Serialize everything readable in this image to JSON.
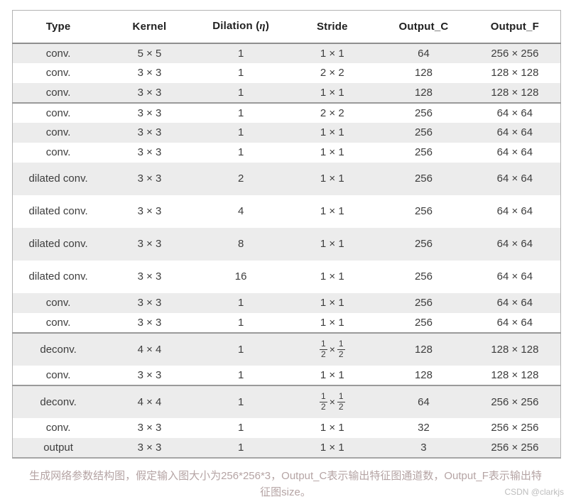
{
  "table": {
    "columns": [
      "Type",
      "Kernel",
      "Dilation (η)",
      "Stride",
      "Output_C",
      "Output_F"
    ],
    "rows": [
      {
        "type": "conv.",
        "kernel": "5 × 5",
        "dilation": "1",
        "stride": "1 × 1",
        "output_c": "64",
        "output_f": "256 × 256",
        "tall": false
      },
      {
        "type": "conv.",
        "kernel": "3 × 3",
        "dilation": "1",
        "stride": "2 × 2",
        "output_c": "128",
        "output_f": "128 × 128",
        "tall": false
      },
      {
        "type": "conv.",
        "kernel": "3 × 3",
        "dilation": "1",
        "stride": "1 × 1",
        "output_c": "128",
        "output_f": "128 × 128",
        "tall": false
      },
      {
        "type": "conv.",
        "kernel": "3 × 3",
        "dilation": "1",
        "stride": "2 × 2",
        "output_c": "256",
        "output_f": "64 × 64",
        "tall": false
      },
      {
        "type": "conv.",
        "kernel": "3 × 3",
        "dilation": "1",
        "stride": "1 × 1",
        "output_c": "256",
        "output_f": "64 × 64",
        "tall": false
      },
      {
        "type": "conv.",
        "kernel": "3 × 3",
        "dilation": "1",
        "stride": "1 × 1",
        "output_c": "256",
        "output_f": "64 × 64",
        "tall": false
      },
      {
        "type": "dilated conv.",
        "kernel": "3 × 3",
        "dilation": "2",
        "stride": "1 × 1",
        "output_c": "256",
        "output_f": "64 × 64",
        "tall": true
      },
      {
        "type": "dilated conv.",
        "kernel": "3 × 3",
        "dilation": "4",
        "stride": "1 × 1",
        "output_c": "256",
        "output_f": "64 × 64",
        "tall": true
      },
      {
        "type": "dilated conv.",
        "kernel": "3 × 3",
        "dilation": "8",
        "stride": "1 × 1",
        "output_c": "256",
        "output_f": "64 × 64",
        "tall": true
      },
      {
        "type": "dilated conv.",
        "kernel": "3 × 3",
        "dilation": "16",
        "stride": "1 × 1",
        "output_c": "256",
        "output_f": "64 × 64",
        "tall": true
      },
      {
        "type": "conv.",
        "kernel": "3 × 3",
        "dilation": "1",
        "stride": "1 × 1",
        "output_c": "256",
        "output_f": "64 × 64",
        "tall": false
      },
      {
        "type": "conv.",
        "kernel": "3 × 3",
        "dilation": "1",
        "stride": "1 × 1",
        "output_c": "256",
        "output_f": "64 × 64",
        "tall": false
      },
      {
        "type": "deconv.",
        "kernel": "4 × 4",
        "dilation": "1",
        "stride": {
          "fraction": [
            [
              "1",
              "2"
            ],
            [
              "1",
              "2"
            ]
          ]
        },
        "output_c": "128",
        "output_f": "128 × 128",
        "tall": true
      },
      {
        "type": "conv.",
        "kernel": "3 × 3",
        "dilation": "1",
        "stride": "1 × 1",
        "output_c": "128",
        "output_f": "128 × 128",
        "tall": false
      },
      {
        "type": "deconv.",
        "kernel": "4 × 4",
        "dilation": "1",
        "stride": {
          "fraction": [
            [
              "1",
              "2"
            ],
            [
              "1",
              "2"
            ]
          ]
        },
        "output_c": "64",
        "output_f": "256 × 256",
        "tall": true
      },
      {
        "type": "conv.",
        "kernel": "3 × 3",
        "dilation": "1",
        "stride": "1 × 1",
        "output_c": "32",
        "output_f": "256 × 256",
        "tall": false
      },
      {
        "type": "output",
        "kernel": "3 × 3",
        "dilation": "1",
        "stride": "1 × 1",
        "output_c": "3",
        "output_f": "256 × 256",
        "tall": false
      }
    ],
    "group_separators_after_rows": [
      3,
      12,
      14
    ]
  },
  "caption": {
    "text": "生成网络参数结构图，假定输入图大小为256*256*3，Output_C表示输出特征图通道数，Output_F表示输出特征图size。"
  },
  "watermark": {
    "text": "CSDN @clarkjs"
  },
  "colors": {
    "row_shade": "#ececec",
    "table_border": "#b3b3b3",
    "group_separator": "#8f8f8f",
    "body_text": "#3d3d3d",
    "caption_text": "#b5a4a4",
    "watermark_text": "#bdbdbd"
  }
}
